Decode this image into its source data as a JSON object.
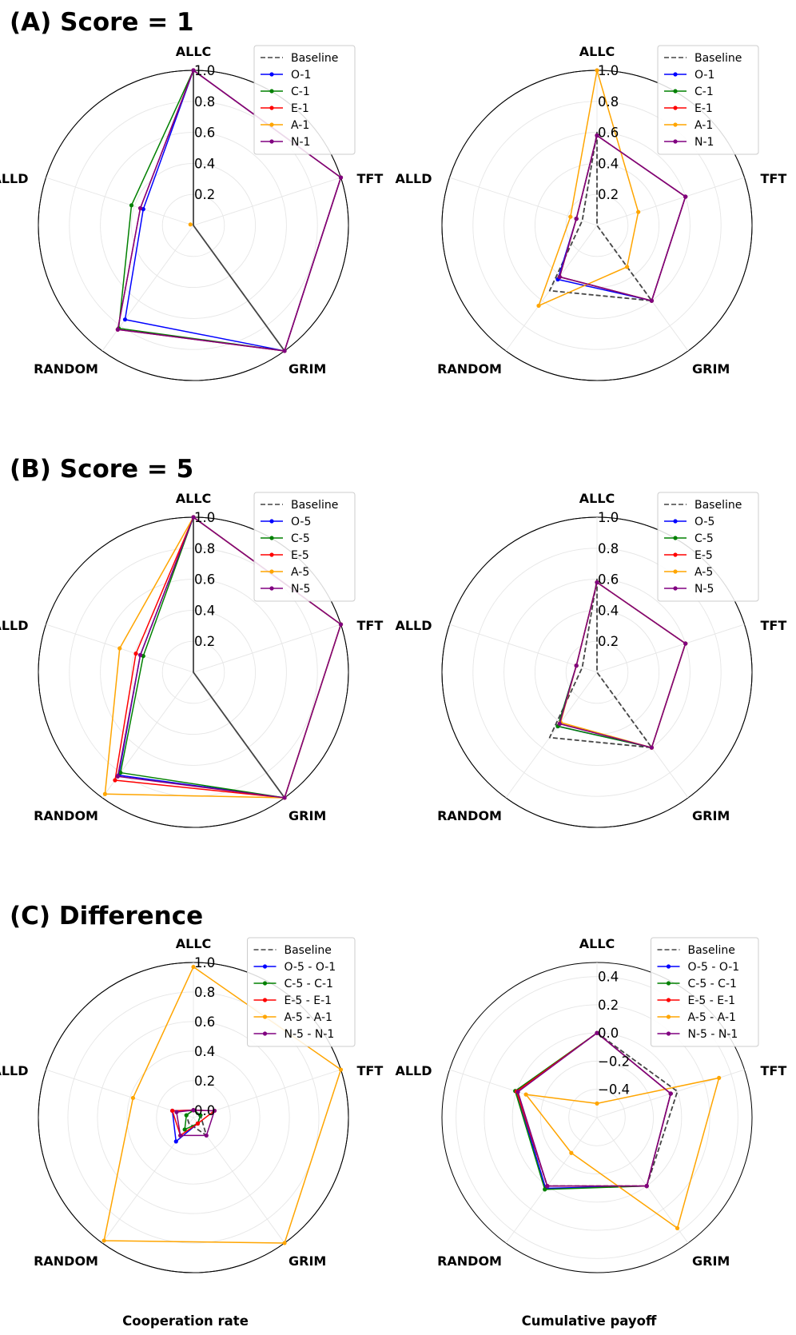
{
  "sections": [
    {
      "title": "(A) Score = 1"
    },
    {
      "title": "(B) Score = 5"
    },
    {
      "title": "(C) Difference"
    }
  ],
  "axes_order": [
    "ALLC",
    "TFT",
    "GRIM",
    "RANDOM",
    "ALLD"
  ],
  "colors": {
    "baseline": "#444444",
    "openness": "#0000ff",
    "conscientiousness": "#008000",
    "extraversion": "#ff0000",
    "agreeableness": "#ffa500",
    "neuroticism": "#800080"
  },
  "chart_data": [
    {
      "type": "radar",
      "title": "",
      "xlabel": "",
      "axes": [
        "ALLC",
        "TFT",
        "GRIM",
        "RANDOM",
        "ALLD"
      ],
      "rlim": [
        0,
        1.0
      ],
      "rticks": [
        "0.2",
        "0.4",
        "0.6",
        "0.8",
        "1.0"
      ],
      "grid": true,
      "legend_position": "top-right",
      "series": [
        {
          "name": "Baseline",
          "values": [
            1.0,
            0.0,
            1.0,
            0.0,
            0.0
          ],
          "style": "dashed"
        },
        {
          "name": "O-1",
          "values": [
            1.0,
            1.0,
            1.0,
            0.75,
            0.34
          ]
        },
        {
          "name": "C-1",
          "values": [
            1.0,
            1.0,
            1.0,
            0.82,
            0.42
          ]
        },
        {
          "name": "E-1",
          "values": [
            1.0,
            1.0,
            1.0,
            0.83,
            0.36
          ]
        },
        {
          "name": "A-1",
          "values": [
            null,
            null,
            null,
            null,
            null
          ],
          "extra_points": [
            {
              "axis": "ALLD",
              "value": 0.02
            }
          ]
        },
        {
          "name": "N-1",
          "values": [
            1.0,
            1.0,
            1.0,
            0.83,
            0.36
          ]
        }
      ]
    },
    {
      "type": "radar",
      "title": "",
      "xlabel": "",
      "axes": [
        "ALLC",
        "TFT",
        "GRIM",
        "RANDOM",
        "ALLD"
      ],
      "rlim": [
        0,
        1.0
      ],
      "rticks": [
        "0.2",
        "0.4",
        "0.6",
        "0.8",
        "1.0"
      ],
      "grid": true,
      "legend_position": "top-right",
      "series": [
        {
          "name": "Baseline",
          "values": [
            0.6,
            0.0,
            0.6,
            0.52,
            0.1
          ],
          "style": "dashed"
        },
        {
          "name": "O-1",
          "values": [
            0.58,
            0.6,
            0.6,
            0.43,
            0.14
          ]
        },
        {
          "name": "C-1",
          "values": [
            0.58,
            0.6,
            0.6,
            0.41,
            0.14
          ]
        },
        {
          "name": "E-1",
          "values": [
            0.58,
            0.6,
            0.6,
            0.41,
            0.14
          ]
        },
        {
          "name": "A-1",
          "values": [
            1.0,
            0.28,
            0.33,
            0.64,
            0.18
          ]
        },
        {
          "name": "N-1",
          "values": [
            0.58,
            0.6,
            0.6,
            0.41,
            0.14
          ]
        }
      ]
    },
    {
      "type": "radar",
      "title": "",
      "xlabel": "",
      "axes": [
        "ALLC",
        "TFT",
        "GRIM",
        "RANDOM",
        "ALLD"
      ],
      "rlim": [
        0,
        1.0
      ],
      "rticks": [
        "0.2",
        "0.4",
        "0.6",
        "0.8",
        "1.0"
      ],
      "grid": true,
      "legend_position": "top-right",
      "series": [
        {
          "name": "Baseline",
          "values": [
            1.0,
            0.0,
            1.0,
            0.0,
            0.0
          ],
          "style": "dashed"
        },
        {
          "name": "O-5",
          "values": [
            1.0,
            1.0,
            1.0,
            0.82,
            0.36
          ]
        },
        {
          "name": "C-5",
          "values": [
            1.0,
            1.0,
            1.0,
            0.8,
            0.34
          ]
        },
        {
          "name": "E-5",
          "values": [
            1.0,
            1.0,
            1.0,
            0.86,
            0.39
          ]
        },
        {
          "name": "A-5",
          "values": [
            1.0,
            1.0,
            1.0,
            0.97,
            0.5
          ]
        },
        {
          "name": "N-5",
          "values": [
            1.0,
            1.0,
            1.0,
            0.83,
            0.36
          ]
        }
      ]
    },
    {
      "type": "radar",
      "title": "",
      "xlabel": "",
      "axes": [
        "ALLC",
        "TFT",
        "GRIM",
        "RANDOM",
        "ALLD"
      ],
      "rlim": [
        0,
        1.0
      ],
      "rticks": [
        "0.2",
        "0.4",
        "0.6",
        "0.8",
        "1.0"
      ],
      "grid": true,
      "legend_position": "top-right",
      "series": [
        {
          "name": "Baseline",
          "values": [
            0.6,
            0.0,
            0.6,
            0.52,
            0.1
          ],
          "style": "dashed"
        },
        {
          "name": "O-5",
          "values": [
            0.58,
            0.6,
            0.6,
            0.43,
            0.14
          ]
        },
        {
          "name": "C-5",
          "values": [
            0.58,
            0.6,
            0.6,
            0.43,
            0.14
          ]
        },
        {
          "name": "E-5",
          "values": [
            0.58,
            0.6,
            0.6,
            0.41,
            0.14
          ]
        },
        {
          "name": "A-5",
          "values": [
            0.58,
            0.6,
            0.6,
            0.4,
            0.14
          ]
        },
        {
          "name": "N-5",
          "values": [
            0.58,
            0.6,
            0.6,
            0.41,
            0.14
          ]
        }
      ]
    },
    {
      "type": "radar",
      "title": "",
      "xlabel": "Cooperation rate",
      "axes": [
        "ALLC",
        "TFT",
        "GRIM",
        "RANDOM",
        "ALLD"
      ],
      "rlim": [
        -0.05,
        1.0
      ],
      "rticks": [
        "0.0",
        "0.2",
        "0.4",
        "0.6",
        "0.8",
        "1.0"
      ],
      "grid": true,
      "legend_position": "top-right",
      "series": [
        {
          "name": "Baseline",
          "values": [
            0.0,
            0.0,
            0.1,
            0.0,
            0.0
          ],
          "style": "dashed"
        },
        {
          "name": "O-5 - O-1",
          "values": [
            0.0,
            0.0,
            0.0,
            0.15,
            0.1
          ]
        },
        {
          "name": "C-5 - C-1",
          "values": [
            0.0,
            0.0,
            0.0,
            0.05,
            0.0
          ]
        },
        {
          "name": "E-5 - E-1",
          "values": [
            0.0,
            0.1,
            0.0,
            0.1,
            0.1
          ]
        },
        {
          "name": "A-5 - A-1",
          "values": [
            0.97,
            1.0,
            1.0,
            0.98,
            0.38
          ]
        },
        {
          "name": "N-5 - N-1",
          "values": [
            0.0,
            0.1,
            0.1,
            0.1,
            0.07
          ]
        }
      ]
    },
    {
      "type": "radar",
      "title": "",
      "xlabel": "Cumulative payoff",
      "axes": [
        "ALLC",
        "TFT",
        "GRIM",
        "RANDOM",
        "ALLD"
      ],
      "rlim": [
        -0.6,
        0.5
      ],
      "rticks": [
        "−0.4",
        "−0.2",
        "0.0",
        "0.2",
        "0.4"
      ],
      "grid": true,
      "legend_position": "top-right",
      "series": [
        {
          "name": "Baseline",
          "values": [
            0.0,
            0.0,
            0.0,
            0.0,
            0.0
          ],
          "style": "dashed"
        },
        {
          "name": "O-5 - O-1",
          "values": [
            0.0,
            -0.05,
            0.0,
            0.02,
            0.0
          ]
        },
        {
          "name": "C-5 - C-1",
          "values": [
            0.0,
            -0.05,
            0.0,
            0.03,
            0.01
          ]
        },
        {
          "name": "E-5 - E-1",
          "values": [
            0.0,
            -0.05,
            0.0,
            0.0,
            0.0
          ]
        },
        {
          "name": "A-5 - A-1",
          "values": [
            -0.5,
            0.31,
            0.37,
            -0.29,
            -0.07
          ]
        },
        {
          "name": "N-5 - N-1",
          "values": [
            0.0,
            -0.05,
            0.0,
            0.0,
            -0.01
          ]
        }
      ]
    }
  ]
}
